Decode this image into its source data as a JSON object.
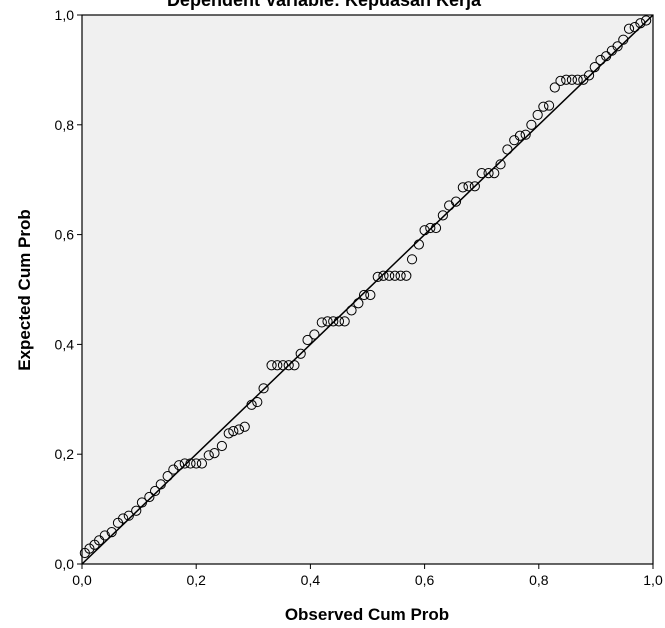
{
  "chart_data": {
    "type": "scatter",
    "title": "Dependent Variable: Kepuasan Kerja",
    "xlabel": "Observed Cum Prob",
    "ylabel": "Expected Cum Prob",
    "xlim": [
      0,
      1
    ],
    "ylim": [
      0,
      1
    ],
    "x_ticks": [
      "0,0",
      "0,2",
      "0,4",
      "0,6",
      "0,8",
      "1,0"
    ],
    "y_ticks": [
      "0,0",
      "0,2",
      "0,4",
      "0,6",
      "0,8",
      "1,0"
    ],
    "grid": false,
    "legend": "none",
    "reference_line": [
      [
        0,
        0
      ],
      [
        1,
        1
      ]
    ],
    "colors": {
      "plot_background": "#f0f0f0",
      "marker_stroke": "#000000",
      "line": "#000000"
    },
    "points": [
      [
        0.005,
        0.02
      ],
      [
        0.013,
        0.028
      ],
      [
        0.022,
        0.035
      ],
      [
        0.03,
        0.043
      ],
      [
        0.04,
        0.052
      ],
      [
        0.052,
        0.058
      ],
      [
        0.063,
        0.075
      ],
      [
        0.072,
        0.083
      ],
      [
        0.082,
        0.088
      ],
      [
        0.095,
        0.097
      ],
      [
        0.105,
        0.112
      ],
      [
        0.118,
        0.122
      ],
      [
        0.128,
        0.133
      ],
      [
        0.138,
        0.145
      ],
      [
        0.15,
        0.16
      ],
      [
        0.16,
        0.172
      ],
      [
        0.17,
        0.18
      ],
      [
        0.18,
        0.183
      ],
      [
        0.19,
        0.183
      ],
      [
        0.2,
        0.183
      ],
      [
        0.21,
        0.183
      ],
      [
        0.222,
        0.198
      ],
      [
        0.232,
        0.202
      ],
      [
        0.245,
        0.215
      ],
      [
        0.257,
        0.238
      ],
      [
        0.265,
        0.242
      ],
      [
        0.275,
        0.245
      ],
      [
        0.285,
        0.25
      ],
      [
        0.297,
        0.29
      ],
      [
        0.307,
        0.295
      ],
      [
        0.318,
        0.32
      ],
      [
        0.332,
        0.362
      ],
      [
        0.342,
        0.362
      ],
      [
        0.352,
        0.362
      ],
      [
        0.362,
        0.362
      ],
      [
        0.372,
        0.362
      ],
      [
        0.383,
        0.383
      ],
      [
        0.395,
        0.408
      ],
      [
        0.407,
        0.418
      ],
      [
        0.42,
        0.44
      ],
      [
        0.43,
        0.442
      ],
      [
        0.44,
        0.442
      ],
      [
        0.45,
        0.442
      ],
      [
        0.46,
        0.442
      ],
      [
        0.472,
        0.462
      ],
      [
        0.484,
        0.475
      ],
      [
        0.494,
        0.49
      ],
      [
        0.505,
        0.49
      ],
      [
        0.518,
        0.523
      ],
      [
        0.528,
        0.525
      ],
      [
        0.538,
        0.525
      ],
      [
        0.548,
        0.525
      ],
      [
        0.558,
        0.525
      ],
      [
        0.568,
        0.525
      ],
      [
        0.578,
        0.555
      ],
      [
        0.59,
        0.582
      ],
      [
        0.6,
        0.608
      ],
      [
        0.61,
        0.612
      ],
      [
        0.62,
        0.612
      ],
      [
        0.632,
        0.635
      ],
      [
        0.643,
        0.653
      ],
      [
        0.655,
        0.66
      ],
      [
        0.667,
        0.686
      ],
      [
        0.677,
        0.688
      ],
      [
        0.688,
        0.688
      ],
      [
        0.7,
        0.712
      ],
      [
        0.712,
        0.712
      ],
      [
        0.722,
        0.712
      ],
      [
        0.733,
        0.728
      ],
      [
        0.745,
        0.755
      ],
      [
        0.757,
        0.772
      ],
      [
        0.767,
        0.78
      ],
      [
        0.777,
        0.782
      ],
      [
        0.787,
        0.8
      ],
      [
        0.798,
        0.818
      ],
      [
        0.808,
        0.833
      ],
      [
        0.818,
        0.835
      ],
      [
        0.828,
        0.868
      ],
      [
        0.838,
        0.88
      ],
      [
        0.848,
        0.882
      ],
      [
        0.858,
        0.882
      ],
      [
        0.868,
        0.882
      ],
      [
        0.878,
        0.882
      ],
      [
        0.888,
        0.89
      ],
      [
        0.898,
        0.905
      ],
      [
        0.908,
        0.918
      ],
      [
        0.918,
        0.925
      ],
      [
        0.928,
        0.935
      ],
      [
        0.938,
        0.943
      ],
      [
        0.948,
        0.955
      ],
      [
        0.958,
        0.975
      ],
      [
        0.968,
        0.978
      ],
      [
        0.978,
        0.985
      ],
      [
        0.988,
        0.99
      ]
    ]
  }
}
